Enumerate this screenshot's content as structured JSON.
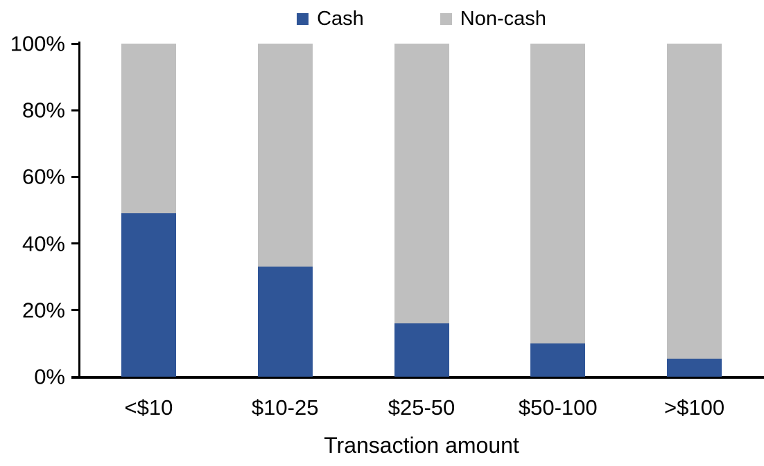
{
  "chart_data": {
    "type": "bar",
    "stacked": true,
    "orientation": "vertical",
    "categories": [
      "<$10",
      "$10-25",
      "$25-50",
      "$50-100",
      ">$100"
    ],
    "series": [
      {
        "name": "Cash",
        "color": "#2F5597",
        "values": [
          49,
          33,
          16,
          10,
          5.5
        ]
      },
      {
        "name": "Non-cash",
        "color": "#BFBFBF",
        "values": [
          51,
          67,
          84,
          90,
          94.5
        ]
      }
    ],
    "xlabel": "Transaction amount",
    "ylabel": "",
    "ylim": [
      0,
      100
    ],
    "yticks": [
      0,
      20,
      40,
      60,
      80,
      100
    ],
    "ytick_labels": [
      "0%",
      "20%",
      "40%",
      "60%",
      "80%",
      "100%"
    ],
    "grid": false,
    "legend_position": "top-center",
    "axis_color": "#000000",
    "background_color": "#FFFFFF"
  }
}
